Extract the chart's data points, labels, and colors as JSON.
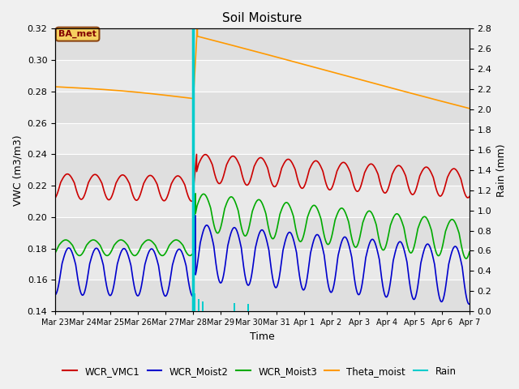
{
  "title": "Soil Moisture",
  "xlabel": "Time",
  "ylabel_left": "VWC (m3/m3)",
  "ylabel_right": "Rain (mm)",
  "ylim_left": [
    0.14,
    0.32
  ],
  "ylim_right": [
    0.0,
    2.8
  ],
  "fig_bg_color": "#f0f0f0",
  "plot_bg_color": "#e8e8e8",
  "station_label": "BA_met",
  "rain_event_day": 5.0,
  "colors": {
    "WCR_VMC1": "#cc0000",
    "WCR_Moist2": "#0000cc",
    "WCR_Moist3": "#00aa00",
    "Theta_moist": "#ff9900",
    "Rain": "#00cccc"
  },
  "legend_labels": [
    "WCR_VMC1",
    "WCR_Moist2",
    "WCR_Moist3",
    "Theta_moist",
    "Rain"
  ],
  "tick_labels": [
    "Mar 23",
    "Mar 24",
    "Mar 25",
    "Mar 26",
    "Mar 27",
    "Mar 28",
    "Mar 29",
    "Mar 30",
    "Mar 31",
    "Apr 1",
    "Apr 2",
    "Apr 3",
    "Apr 4",
    "Apr 5",
    "Apr 6",
    "Apr 7"
  ],
  "yticks_left": [
    0.14,
    0.16,
    0.18,
    0.2,
    0.22,
    0.24,
    0.26,
    0.28,
    0.3,
    0.32
  ],
  "yticks_right": [
    0.0,
    0.2,
    0.4,
    0.6,
    0.8,
    1.0,
    1.2,
    1.4,
    1.6,
    1.8,
    2.0,
    2.2,
    2.4,
    2.6,
    2.8
  ],
  "rain_bars": {
    "t": [
      5.05,
      5.2,
      5.35,
      6.5,
      7.0
    ],
    "v": [
      0.18,
      0.12,
      0.1,
      0.08,
      0.07
    ]
  }
}
